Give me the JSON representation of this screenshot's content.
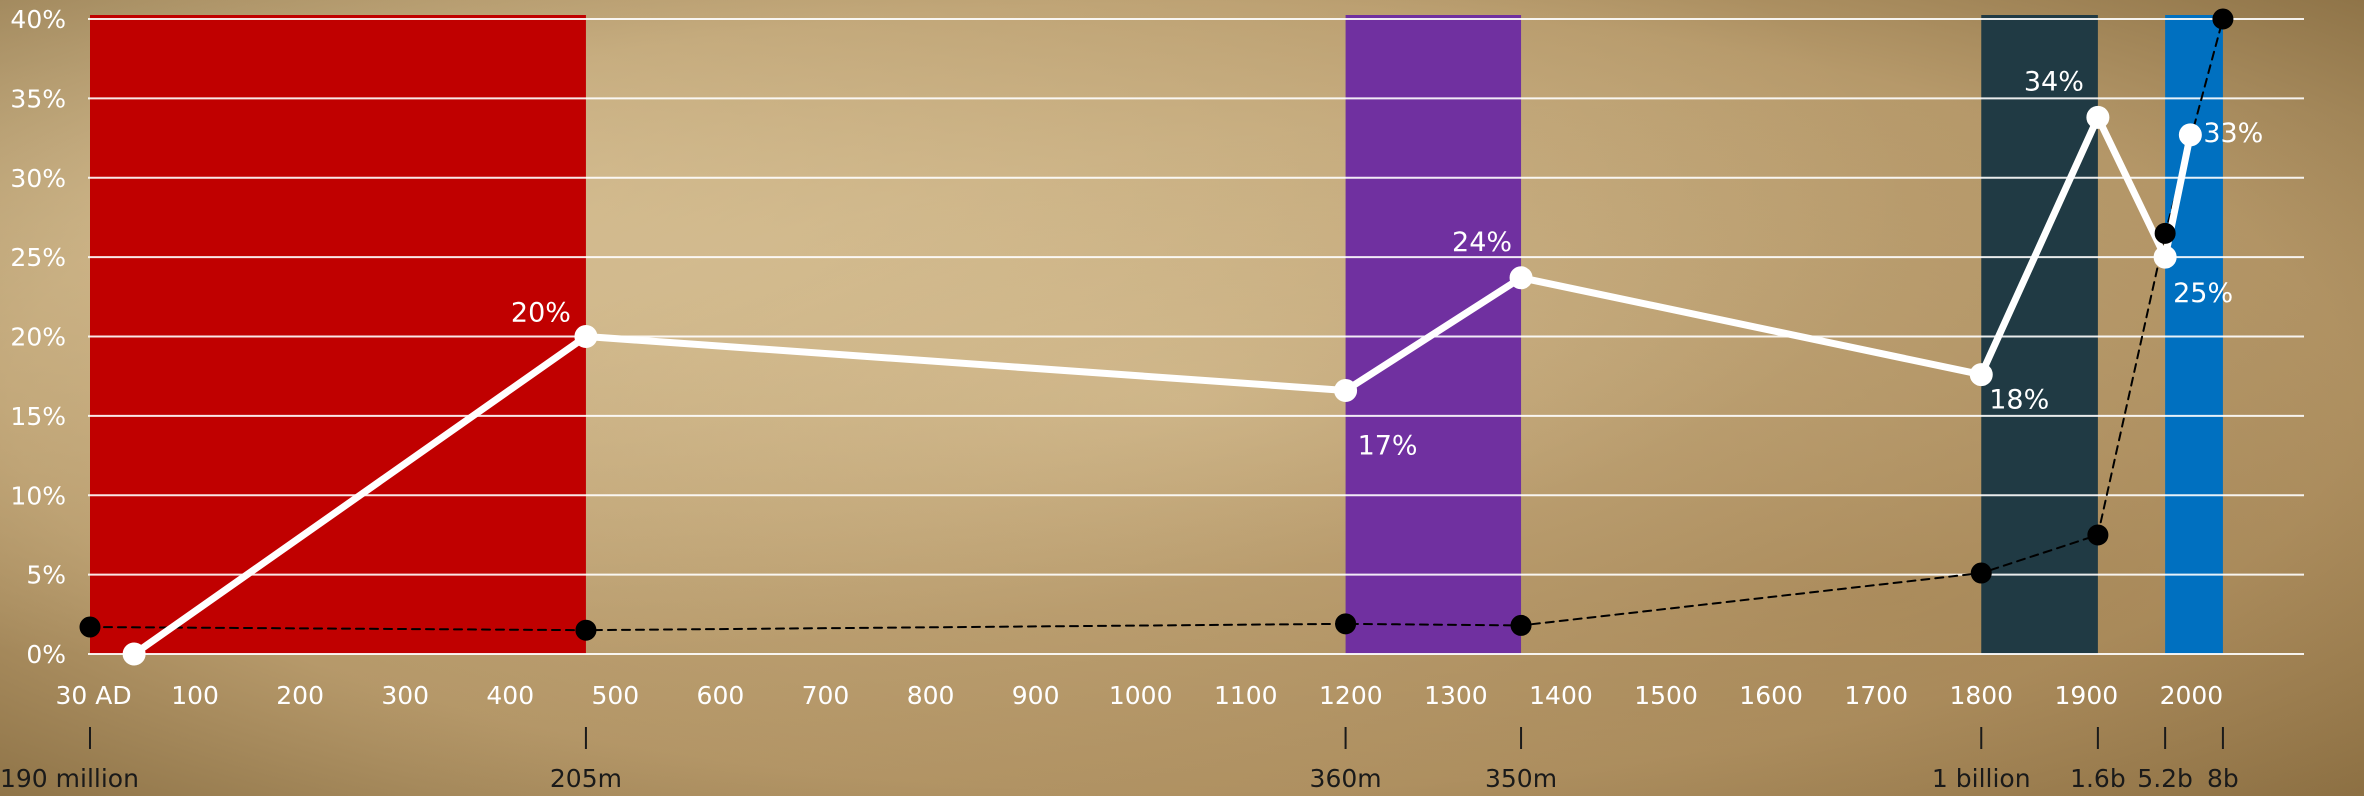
{
  "chart_data": {
    "type": "line",
    "x_ticks": [
      "30 AD",
      "100",
      "200",
      "300",
      "400",
      "500",
      "600",
      "700",
      "800",
      "900",
      "1000",
      "1100",
      "1200",
      "1300",
      "1400",
      "1500",
      "1600",
      "1700",
      "1800",
      "1900",
      "2000"
    ],
    "y_ticks": [
      "0%",
      "5%",
      "10%",
      "15%",
      "20%",
      "25%",
      "30%",
      "35%",
      "40%"
    ],
    "ylim": [
      0,
      40
    ],
    "grid": true,
    "periods": [
      {
        "start": 0,
        "end": 472,
        "color": "#c00000"
      },
      {
        "start": 1195,
        "end": 1362,
        "color": "#7030a0"
      },
      {
        "start": 1800,
        "end": 1911,
        "color": "#203a44"
      },
      {
        "start": 1975,
        "end": 2030,
        "color": "#0070c0"
      }
    ],
    "series": [
      {
        "style": "solid",
        "color": "#ffffff",
        "points": [
          {
            "x": 42,
            "y": 0,
            "label": ""
          },
          {
            "x": 472,
            "y": 20,
            "label": "20%"
          },
          {
            "x": 1195,
            "y": 16.6,
            "label": "17%"
          },
          {
            "x": 1362,
            "y": 23.7,
            "label": "24%"
          },
          {
            "x": 1800,
            "y": 17.6,
            "label": "18%"
          },
          {
            "x": 1911,
            "y": 33.8,
            "label": "34%"
          },
          {
            "x": 1975,
            "y": 25,
            "label": "25%"
          },
          {
            "x": 1999,
            "y": 32.7,
            "label": "33%"
          }
        ]
      },
      {
        "style": "dashed",
        "color": "#000000",
        "points": [
          {
            "x": 0,
            "y": 1.7
          },
          {
            "x": 472,
            "y": 1.5
          },
          {
            "x": 1195,
            "y": 1.9
          },
          {
            "x": 1362,
            "y": 1.8
          },
          {
            "x": 1800,
            "y": 5.1
          },
          {
            "x": 1911,
            "y": 7.5
          },
          {
            "x": 1975,
            "y": 26.5
          },
          {
            "x": 2030,
            "y": 40
          }
        ]
      }
    ],
    "population_markers": [
      {
        "x": 0,
        "label": "190 million"
      },
      {
        "x": 472,
        "label": "205m"
      },
      {
        "x": 1195,
        "label": "360m"
      },
      {
        "x": 1362,
        "label": "350m"
      },
      {
        "x": 1800,
        "label": "1 billion"
      },
      {
        "x": 1911,
        "label": "1.6b"
      },
      {
        "x": 1975,
        "label": "5.2b"
      },
      {
        "x": 2030,
        "label": "8b"
      }
    ]
  }
}
